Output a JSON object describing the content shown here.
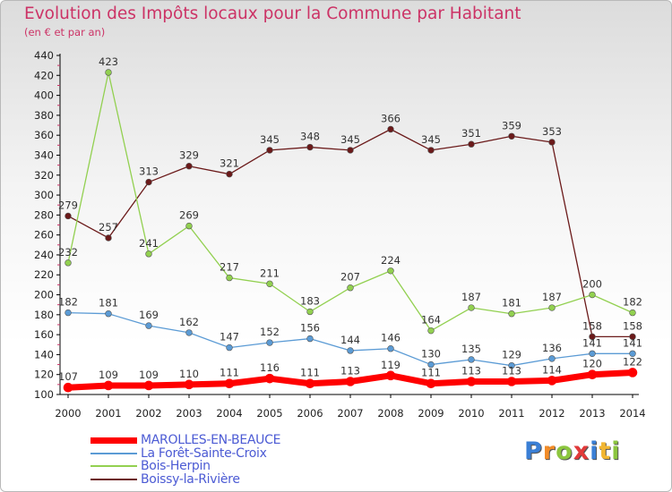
{
  "header": {
    "title": "Evolution des Impôts locaux pour la Commune par Habitant",
    "subtitle": "(en € et par an)"
  },
  "chart_data": {
    "type": "line",
    "x": [
      "2000",
      "2001",
      "2002",
      "2003",
      "2004",
      "2005",
      "2006",
      "2007",
      "2008",
      "2009",
      "2010",
      "2011",
      "2012",
      "2013",
      "2014"
    ],
    "y_ticks": [
      100,
      120,
      140,
      160,
      180,
      200,
      220,
      240,
      260,
      280,
      300,
      320,
      340,
      360,
      380,
      400,
      420,
      440
    ],
    "ylim": [
      100,
      440
    ],
    "grid": false,
    "legend_position": "bottom-left",
    "series": [
      {
        "name": "Boissy-la-Rivière",
        "color": "#6b1a1a",
        "line_width": 1.3,
        "values": [
          279,
          257,
          313,
          329,
          321,
          345,
          348,
          345,
          366,
          345,
          351,
          359,
          353,
          158,
          158
        ]
      },
      {
        "name": "Bois-Herpin",
        "color": "#92d050",
        "line_width": 1.3,
        "values": [
          232,
          423,
          241,
          269,
          217,
          211,
          183,
          207,
          224,
          164,
          187,
          181,
          187,
          200,
          182
        ]
      },
      {
        "name": "La Forêt-Sainte-Croix",
        "color": "#5b9bd5",
        "line_width": 1.3,
        "values": [
          182,
          181,
          169,
          162,
          147,
          152,
          156,
          144,
          146,
          130,
          135,
          129,
          136,
          141,
          141
        ]
      },
      {
        "name": "MAROLLES-EN-BEAUCE",
        "color": "#ff0000",
        "line_width": 7,
        "values": [
          107,
          109,
          109,
          110,
          111,
          116,
          111,
          113,
          119,
          111,
          113,
          113,
          114,
          120,
          122
        ]
      }
    ]
  },
  "legend": [
    {
      "name": "MAROLLES-EN-BEAUCE",
      "color": "#ff0000",
      "thickness": 7
    },
    {
      "name": "La Forêt-Sainte-Croix",
      "color": "#5b9bd5",
      "thickness": 2
    },
    {
      "name": "Bois-Herpin",
      "color": "#92d050",
      "thickness": 2
    },
    {
      "name": "Boissy-la-Rivière",
      "color": "#6b1a1a",
      "thickness": 2
    }
  ],
  "logo": {
    "letters": [
      "P",
      "r",
      "o",
      "x",
      "i",
      "t",
      "i"
    ],
    "colors": [
      "#3a7fd5",
      "#f28c28",
      "#8cc63f",
      "#e23a3a",
      "#3a7fd5",
      "#f2b632",
      "#8cc63f"
    ]
  }
}
